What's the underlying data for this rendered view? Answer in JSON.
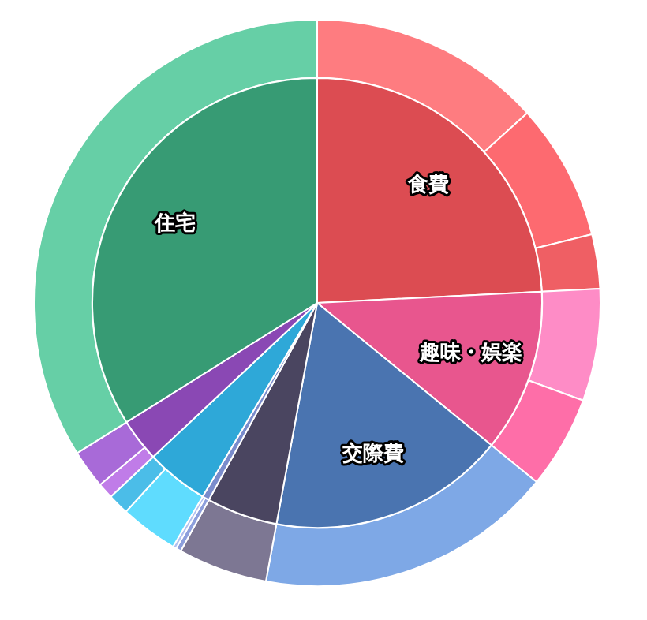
{
  "chart_data": [
    {
      "type": "pie",
      "categories": [
        "食費",
        "趣味・娯楽",
        "交際費",
        null,
        null,
        null,
        null,
        "住宅"
      ],
      "values": [
        24.2,
        11.7,
        17.0,
        5.1,
        0.5,
        4.5,
        3.1,
        33.9
      ],
      "colors": [
        "#dc4c52",
        "#e8568e",
        "#4a74b0",
        "#4a4560",
        "#7a8ccc",
        "#2ea8d8",
        "#8a48b4",
        "#379b74"
      ],
      "legend": false
    },
    {
      "type": "donut",
      "categories": [
        null,
        null,
        null,
        null,
        null,
        null,
        null,
        null,
        null,
        null,
        null,
        null,
        null,
        null
      ],
      "values": [
        13.3,
        7.8,
        3.1,
        6.4,
        5.3,
        17.0,
        5.1,
        0.3,
        0.2,
        3.3,
        1.2,
        0.9,
        2.2,
        33.9
      ],
      "colors": [
        "#fe7c80",
        "#fd6a70",
        "#ef5f64",
        "#fe8cc6",
        "#fe6ea8",
        "#7ea8e6",
        "#7d7793",
        "#8d9fdc",
        "#b0c0f0",
        "#5fdcfe",
        "#4bbde8",
        "#c07ce8",
        "#a86ad8",
        "#66cfa6"
      ],
      "legend": false
    }
  ]
}
